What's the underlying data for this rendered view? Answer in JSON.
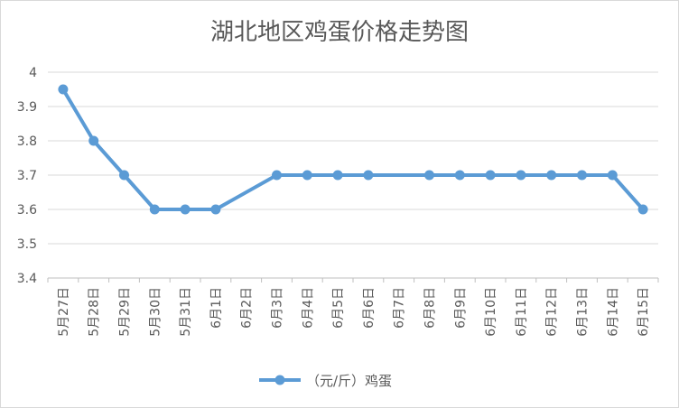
{
  "chart_data": {
    "type": "line",
    "title": "湖北地区鸡蛋价格走势图",
    "categories": [
      "5月27日",
      "5月28日",
      "5月29日",
      "5月30日",
      "5月31日",
      "6月1日",
      "6月2日",
      "6月3日",
      "6月4日",
      "6月5日",
      "6月6日",
      "6月7日",
      "6月8日",
      "6月9日",
      "6月10日",
      "6月11日",
      "6月12日",
      "6月13日",
      "6月14日",
      "6月15日"
    ],
    "series": [
      {
        "name": "（元/斤）鸡蛋",
        "color": "#5b9bd5",
        "values": [
          3.95,
          3.8,
          3.7,
          3.6,
          3.6,
          3.6,
          null,
          3.7,
          3.7,
          3.7,
          3.7,
          null,
          3.7,
          3.7,
          3.7,
          3.7,
          3.7,
          3.7,
          3.7,
          3.6
        ]
      }
    ],
    "yticks": [
      "3.4",
      "3.5",
      "3.6",
      "3.7",
      "3.8",
      "3.9",
      "4"
    ],
    "ylim": [
      3.4,
      4.0
    ],
    "xlabel": "",
    "ylabel": "",
    "grid": true,
    "legend_position": "bottom"
  }
}
